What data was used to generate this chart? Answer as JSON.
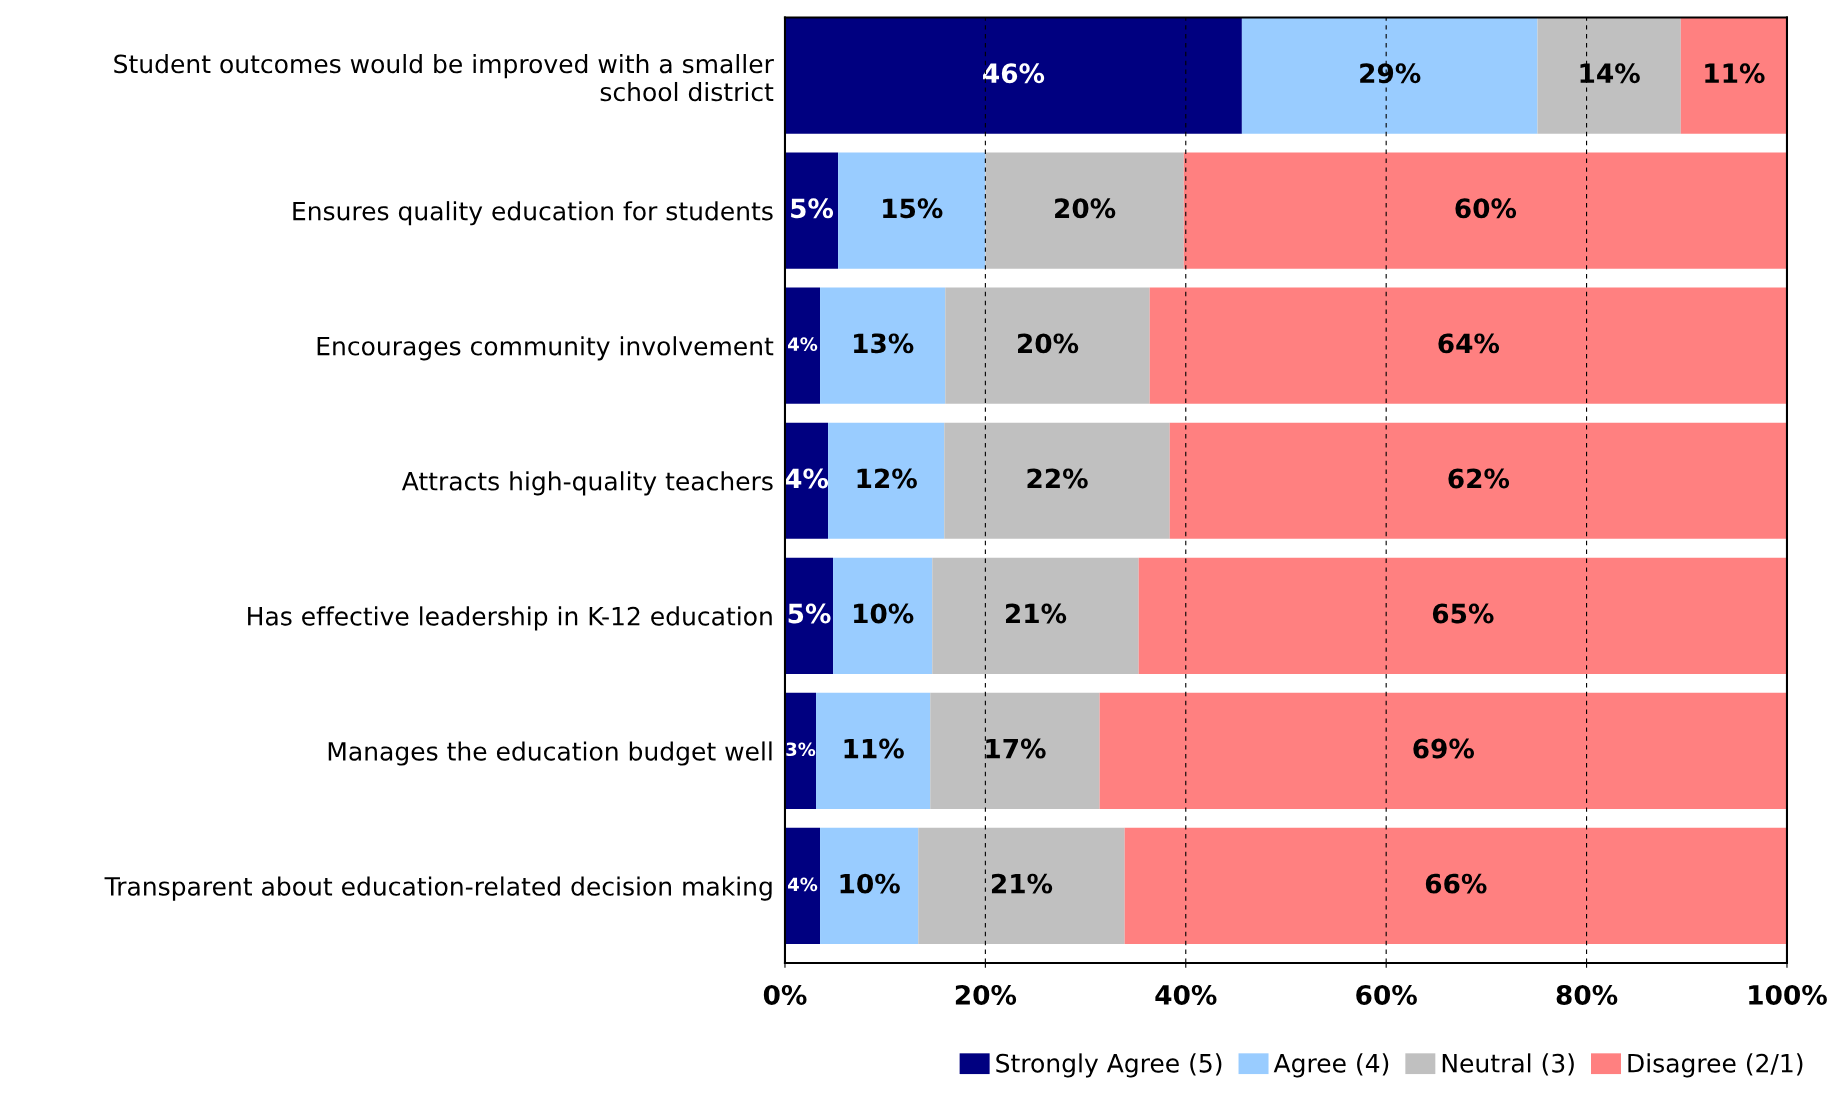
{
  "chart_data": {
    "type": "bar",
    "orientation": "horizontal",
    "stacked": true,
    "categories": [
      "Student outcomes would be improved with a smaller\nschool district",
      "Ensures quality education for students",
      "Encourages community involvement",
      "Attracts high-quality teachers",
      "Has effective leadership in K-12 education",
      "Manages the education budget well",
      "Transparent about education-related decision making"
    ],
    "series": [
      {
        "name": "Strongly Agree (5)",
        "color": "#000080",
        "values": [
          45.6,
          5.3,
          3.5,
          4.3,
          4.8,
          3.1,
          3.5
        ],
        "value_labels": [
          "46%",
          "5%",
          "4%",
          "4%",
          "5%",
          "3%",
          "4%"
        ]
      },
      {
        "name": "Agree (4)",
        "color": "#99ccff",
        "values": [
          29.5,
          14.7,
          12.5,
          11.6,
          9.9,
          11.4,
          9.8
        ],
        "value_labels": [
          "29%",
          "15%",
          "13%",
          "12%",
          "10%",
          "11%",
          "10%"
        ]
      },
      {
        "name": "Neutral (3)",
        "color": "#c0c0c0",
        "values": [
          14.3,
          19.8,
          20.4,
          22.5,
          20.6,
          16.9,
          20.6
        ],
        "value_labels": [
          "14%",
          "20%",
          "20%",
          "22%",
          "21%",
          "17%",
          "21%"
        ]
      },
      {
        "name": "Disagree (2/1)",
        "color": "#ff8080",
        "values": [
          10.6,
          60.2,
          63.6,
          61.6,
          64.7,
          68.6,
          66.1
        ],
        "value_labels": [
          "11%",
          "60%",
          "64%",
          "62%",
          "65%",
          "69%",
          "66%"
        ]
      }
    ],
    "xlim": [
      0,
      100
    ],
    "xticks": [
      {
        "value": 0,
        "label": "0%"
      },
      {
        "value": 20,
        "label": "20%"
      },
      {
        "value": 40,
        "label": "40%"
      },
      {
        "value": 60,
        "label": "60%"
      },
      {
        "value": 80,
        "label": "80%"
      },
      {
        "value": 100,
        "label": "100%"
      }
    ],
    "grid": "x",
    "legend": "bottom right"
  }
}
